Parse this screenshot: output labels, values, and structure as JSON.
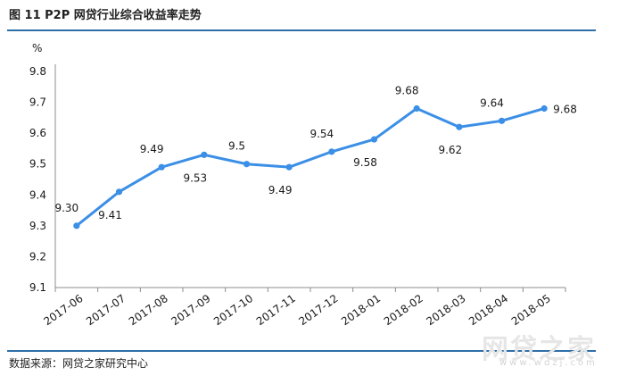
{
  "title": "图 11   P2P 网贷行业综合收益率走势",
  "source": "数据来源：网贷之家研究中心",
  "watermark": {
    "name": "网贷之家",
    "url": "www.wdzj.com"
  },
  "chart_data": {
    "type": "line",
    "ylabel": "%",
    "ylim": [
      9.1,
      9.8
    ],
    "yticks": [
      9.1,
      9.2,
      9.3,
      9.4,
      9.5,
      9.6,
      9.7,
      9.8
    ],
    "categories": [
      "2017-06",
      "2017-07",
      "2017-08",
      "2017-09",
      "2017-10",
      "2017-11",
      "2017-12",
      "2018-01",
      "2018-02",
      "2018-03",
      "2018-04",
      "2018-05"
    ],
    "values": [
      9.3,
      9.41,
      9.49,
      9.53,
      9.5,
      9.49,
      9.54,
      9.58,
      9.68,
      9.62,
      9.64,
      9.68
    ],
    "data_labels": [
      "9.30",
      "9.41",
      "9.49",
      "9.53",
      "9.5",
      "9.49",
      "9.54",
      "9.58",
      "9.68",
      "9.62",
      "9.64",
      "9.68"
    ],
    "line_color": "#3b8fe6",
    "grid": false,
    "legend": "none"
  }
}
